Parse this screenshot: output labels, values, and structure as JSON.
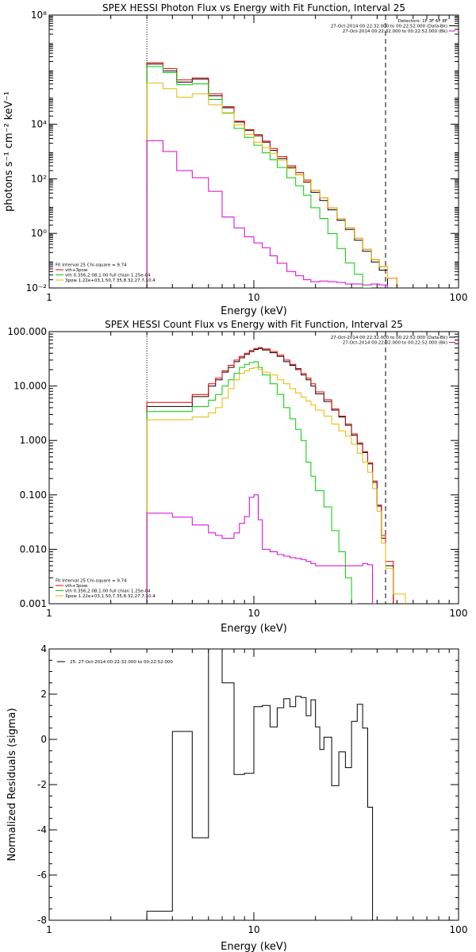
{
  "chart_data": [
    {
      "type": "line",
      "style": "step",
      "title": "SPEX HESSI Photon Flux vs Energy with Fit Function, Interval 25",
      "xlabel": "Energy (keV)",
      "ylabel": "photons s⁻¹ cm⁻² keV⁻¹",
      "xscale": "log",
      "yscale": "log",
      "xlim": [
        1,
        100
      ],
      "ylim": [
        0.01,
        100000000
      ],
      "x_ticks": [
        {
          "value": 1,
          "label": "1"
        },
        {
          "value": 10,
          "label": "10"
        },
        {
          "value": 100,
          "label": "100"
        }
      ],
      "y_ticks": [
        {
          "value": 0.01,
          "label": "10⁻²"
        },
        {
          "value": 1,
          "label": "10⁰"
        },
        {
          "value": 100,
          "label": "10²"
        },
        {
          "value": 10000,
          "label": "10⁴"
        },
        {
          "value": 100000000,
          "label": "10⁸"
        }
      ],
      "vlines": [
        {
          "x": 3,
          "style": "dotted"
        },
        {
          "x": 44,
          "style": "dashed"
        }
      ],
      "info_lines": [
        "Detectors: 1F 3F 6F 8F",
        "27-Oct-2014 00:22:32.000 to 00:22:52.000 (Data-Bk)",
        "27-Oct-2014 00:22:32.000 to 00:22:52.000 (Bk)"
      ],
      "info_colors": [
        "#000000",
        "#000000",
        "#d400d4"
      ],
      "legend": [
        "Fit Interval 25   Chi-square = 9.74",
        "vth+3pow",
        "vth 0.356,2.08,1.00  full chian 1.25e-04",
        "3pow 1.22e+03,1.50,7.35,8.32,27.7,10.4"
      ],
      "legend_colors": [
        "#000000",
        "#e00000",
        "#00cc00",
        "#e6b800"
      ],
      "edges": [
        3,
        3.6,
        4.2,
        5,
        6,
        7,
        8,
        9,
        10,
        11,
        12,
        13,
        14.5,
        16,
        17.5,
        19,
        21,
        23,
        25.5,
        28,
        31,
        34,
        37.5,
        41,
        45,
        50
      ],
      "series": [
        {
          "color": "#000000",
          "values": [
            1600000,
            900000,
            350000,
            450000,
            110000,
            40000,
            12000,
            6000,
            3800,
            2200,
            1100,
            550,
            260,
            140,
            75,
            32,
            16,
            7.3,
            3,
            1.4,
            0.56,
            0.22,
            0.09,
            0.045
          ]
        },
        {
          "color": "#e00000",
          "values": [
            1800000,
            1100000,
            420000,
            500000,
            130000,
            44000,
            13000,
            6300,
            4200,
            2400,
            1300,
            650,
            300,
            170,
            90,
            38,
            20,
            8.5,
            3.4,
            1.6,
            0.66,
            0.26,
            0.11,
            0.06,
            0.023
          ]
        },
        {
          "color": "#00cc00",
          "values": [
            1300000,
            780000,
            280000,
            300000,
            80000,
            26000,
            7000,
            3300,
            1700,
            900,
            500,
            260,
            110,
            55,
            25,
            8.7,
            3.5,
            0.98,
            0.28,
            0.083,
            0.032,
            0.01
          ]
        },
        {
          "color": "#e6b800",
          "values": [
            320000,
            200000,
            98000,
            130000,
            52000,
            25000,
            9500,
            4200,
            2200,
            1400,
            860,
            480,
            240,
            140,
            80,
            38,
            20,
            8.5,
            3.4,
            1.6,
            0.66,
            0.26,
            0.11,
            0.06,
            0.023
          ]
        },
        {
          "color": "#d400d4",
          "values": [
            2500,
            1000,
            200,
            110,
            35,
            4,
            1.6,
            0.75,
            0.45,
            0.3,
            0.15,
            0.08,
            0.04,
            0.028,
            0.02,
            0.017,
            0.018,
            0.017,
            0.016,
            0.014,
            0.014,
            0.013,
            0.014,
            0.013
          ]
        }
      ]
    },
    {
      "type": "line",
      "style": "step",
      "title": "SPEX HESSI Count Flux vs Energy with Fit Function, Interval 25",
      "xlabel": "Energy (keV)",
      "ylabel": "",
      "xscale": "log",
      "yscale": "log",
      "xlim": [
        1,
        100
      ],
      "ylim": [
        0.001,
        100
      ],
      "x_ticks": [
        {
          "value": 1,
          "label": "1"
        },
        {
          "value": 10,
          "label": "10"
        },
        {
          "value": 100,
          "label": "100"
        }
      ],
      "y_ticks": [
        {
          "value": 0.001,
          "label": "0.001"
        },
        {
          "value": 0.01,
          "label": "0.010"
        },
        {
          "value": 0.1,
          "label": "0.100"
        },
        {
          "value": 1,
          "label": "1.000"
        },
        {
          "value": 10,
          "label": "10.000"
        },
        {
          "value": 100,
          "label": "100.000"
        }
      ],
      "vlines": [
        {
          "x": 3,
          "style": "dotted"
        },
        {
          "x": 44,
          "style": "dashed"
        }
      ],
      "info_lines": [
        "27-Oct-2014 00:22:32.000 to 00:22:52.000 (Data-Bk)",
        "27-Oct-2014 00:22:32.000 to 00:22:52.000 (Bk)"
      ],
      "info_colors": [
        "#000000",
        "#d400d4"
      ],
      "legend": [
        "Fit Interval 25   Chi-square = 9.74",
        "vth+3pow",
        "vth 0.356,2.08,1.00  full chian 1.25e-04",
        "3pow 1.22e+03,1.50,7.35,8.32,27.7,10.4"
      ],
      "legend_colors": [
        "#000000",
        "#e00000",
        "#00cc00",
        "#e6b800"
      ],
      "edges": [
        3,
        4,
        5,
        6,
        6.5,
        7,
        7.5,
        8,
        8.5,
        9,
        9.5,
        10,
        10.5,
        11,
        12,
        13,
        14,
        15,
        16,
        17,
        18,
        19,
        20,
        22,
        24,
        26,
        28,
        30,
        32,
        34,
        36,
        38,
        40,
        42,
        44,
        48,
        55
      ],
      "series": [
        {
          "color": "#000000",
          "values": [
            4.2,
            4.2,
            6.4,
            10,
            13,
            18,
            22,
            28,
            33,
            38,
            43,
            47,
            49,
            46,
            41,
            35,
            28,
            24,
            20,
            16,
            13,
            10,
            7.2,
            5.2,
            3.6,
            2.7,
            1.9,
            1.25,
            0.86,
            0.6,
            0.37,
            0.17,
            0.062,
            0.016,
            0.005
          ]
        },
        {
          "color": "#e00000",
          "values": [
            5,
            5,
            7,
            11,
            14,
            19,
            24,
            30,
            35,
            40,
            45,
            49,
            51,
            48,
            43,
            37,
            30,
            25,
            21,
            17,
            14,
            11,
            7.8,
            5.6,
            3.8,
            2.8,
            2,
            1.32,
            0.9,
            0.62,
            0.39,
            0.18,
            0.065,
            0.018,
            0.006
          ]
        },
        {
          "color": "#00cc00",
          "values": [
            3.4,
            3.4,
            4.2,
            5.5,
            7,
            10,
            13,
            17,
            22,
            25,
            27,
            28,
            22,
            16,
            11,
            7,
            4,
            2.5,
            1.6,
            1,
            0.4,
            0.22,
            0.12,
            0.06,
            0.022,
            0.009,
            0.003,
            0.001
          ]
        },
        {
          "color": "#e6b800",
          "values": [
            2.4,
            2.4,
            2.7,
            3.2,
            4,
            6,
            9,
            13,
            17,
            19,
            21,
            22,
            20,
            18,
            16,
            13,
            11,
            9,
            7.5,
            6.2,
            5.3,
            4.5,
            3.6,
            2.8,
            2,
            1.5,
            1.2,
            0.85,
            0.58,
            0.4,
            0.26,
            0.13,
            0.05,
            0.013,
            0.0045,
            0.0015
          ]
        },
        {
          "color": "#d400d4",
          "values": [
            0.046,
            0.039,
            0.028,
            0.02,
            0.018,
            0.016,
            0.016,
            0.02,
            0.03,
            0.04,
            0.09,
            0.1,
            0.035,
            0.01,
            0.009,
            0.008,
            0.0075,
            0.007,
            0.0068,
            0.0065,
            0.006,
            0.0055,
            0.005,
            0.005,
            0.005,
            0.005,
            0.005,
            0.005,
            0.005,
            0.0055,
            0.0052,
            0.001
          ]
        }
      ]
    },
    {
      "type": "line",
      "style": "step",
      "title": "",
      "xlabel": "Energy (keV)",
      "ylabel": "Normalized Residuals (sigma)",
      "xscale": "log",
      "yscale": "linear",
      "xlim": [
        1,
        100
      ],
      "ylim": [
        -8,
        4
      ],
      "x_ticks": [
        {
          "value": 1,
          "label": "1"
        },
        {
          "value": 10,
          "label": "10"
        },
        {
          "value": 100,
          "label": "100"
        }
      ],
      "y_ticks": [
        {
          "value": -8,
          "label": "-8"
        },
        {
          "value": -6,
          "label": "-6"
        },
        {
          "value": -4,
          "label": "-4"
        },
        {
          "value": -2,
          "label": "-2"
        },
        {
          "value": 0,
          "label": "0"
        },
        {
          "value": 2,
          "label": "2"
        },
        {
          "value": 4,
          "label": "4"
        }
      ],
      "legend": [
        "25: 27-Oct-2014 00:22:32.000 to 00:22:52.000"
      ],
      "legend_colors": [
        "#000000"
      ],
      "edges": [
        3,
        4,
        5,
        6,
        7,
        8,
        9,
        10,
        11,
        12,
        13,
        14,
        15,
        16,
        17,
        18,
        19,
        20,
        21,
        22,
        24,
        26,
        28,
        30,
        32,
        34,
        36,
        38,
        40,
        42,
        44
      ],
      "series": [
        {
          "color": "#000000",
          "values": [
            -7.6,
            0.35,
            -4.35,
            4,
            2.5,
            -1.55,
            -1.5,
            1.45,
            1.5,
            0.55,
            1.4,
            1.8,
            1.45,
            1.9,
            1.85,
            1.05,
            1.75,
            0.55,
            -0.45,
            0.1,
            -2.05,
            -0.55,
            -1.25,
            0.8,
            1.55,
            0.5,
            -3.0,
            -8.0,
            -8.0,
            -8.0
          ]
        }
      ]
    }
  ]
}
